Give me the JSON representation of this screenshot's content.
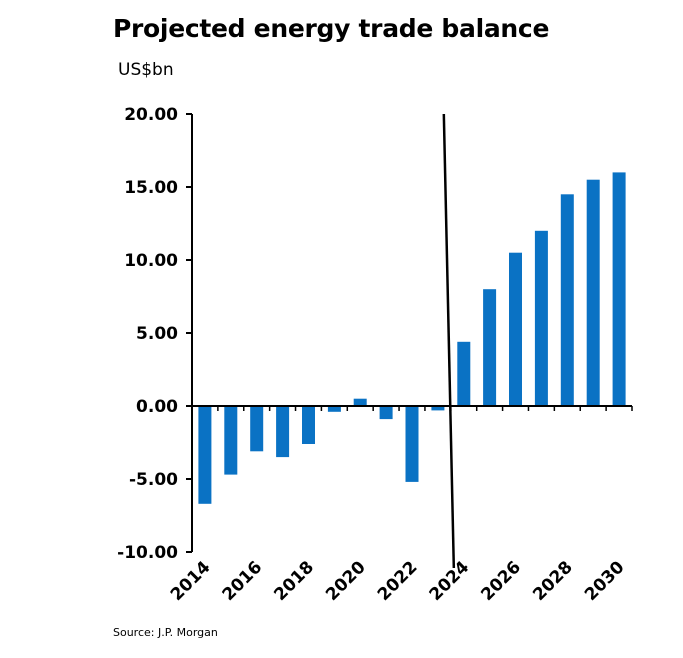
{
  "title": "Projected energy trade balance",
  "unit_label": "US$bn",
  "source": "Source: J.P. Morgan",
  "colors": {
    "bar": "#0a72c4",
    "axis": "#000000"
  },
  "chart_data": {
    "type": "bar",
    "title": "Projected energy trade balance",
    "ylabel": "US$bn",
    "xlabel": "",
    "ylim": [
      -10,
      20
    ],
    "yticks": [
      "-10.00",
      "-5.00",
      "0.00",
      "5.00",
      "10.00",
      "15.00",
      "20.00"
    ],
    "categories": [
      "2014",
      "2015",
      "2016",
      "2017",
      "2018",
      "2019",
      "2020",
      "2021",
      "2022",
      "2023",
      "2024",
      "2025",
      "2026",
      "2027",
      "2028",
      "2029",
      "2030"
    ],
    "xtick_labels": [
      "2014",
      "2016",
      "2018",
      "2020",
      "2022",
      "2024",
      "2026",
      "2028",
      "2030"
    ],
    "values": [
      -6.7,
      -4.7,
      -3.1,
      -3.5,
      -2.6,
      -0.4,
      0.5,
      -0.9,
      -5.2,
      -0.3,
      4.4,
      8.0,
      10.5,
      12.0,
      14.5,
      15.5,
      16.0
    ],
    "divider_category": "2024",
    "grid": false,
    "legend": "none"
  }
}
